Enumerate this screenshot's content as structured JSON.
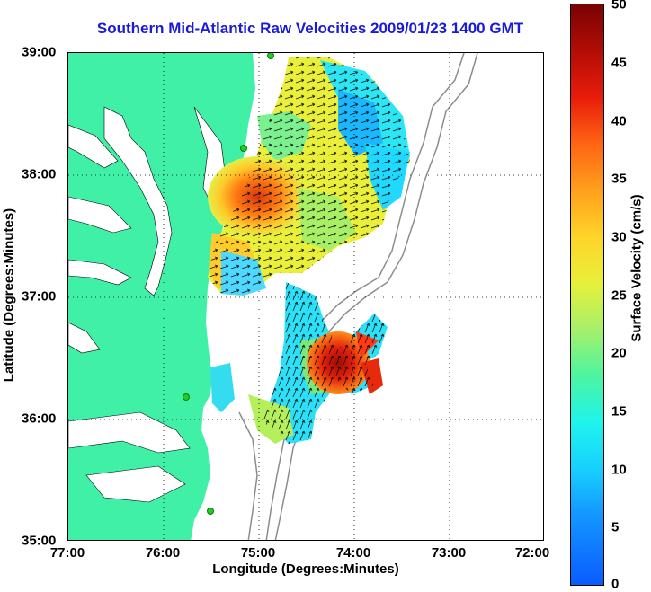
{
  "title": "Southern Mid-Atlantic Raw Velocities 2009/01/23 1400 GMT",
  "x_axis": {
    "label": "Longitude (Degrees:Minutes)",
    "ticks": [
      "77:00",
      "76:00",
      "75:00",
      "74:00",
      "73:00",
      "72:00"
    ],
    "range": [
      -77,
      -72
    ]
  },
  "y_axis": {
    "label": "Latitude (Degrees:Minutes)",
    "ticks": [
      "39:00",
      "38:00",
      "37:00",
      "36:00",
      "35:00"
    ],
    "range": [
      35,
      39
    ]
  },
  "colorbar": {
    "label": "Surface Velocity (cm/s)",
    "ticks": [
      "50",
      "45",
      "40",
      "35",
      "30",
      "25",
      "20",
      "15",
      "10",
      "5",
      "0"
    ],
    "range": [
      0,
      50
    ]
  },
  "colors": {
    "land": "#3ff0a6",
    "title": "#1a1adb",
    "bathymetry": "#8c8c8c",
    "station": "#22cc22"
  },
  "chart_data": {
    "type": "heatmap",
    "grid": "dotted",
    "legend": "right colorbar",
    "stations": [
      {
        "lon": -75.1,
        "lat": 38.98
      },
      {
        "lon": -75.15,
        "lat": 38.22
      },
      {
        "lon": -75.9,
        "lat": 36.17
      },
      {
        "lon": -75.47,
        "lat": 35.25
      }
    ]
  }
}
